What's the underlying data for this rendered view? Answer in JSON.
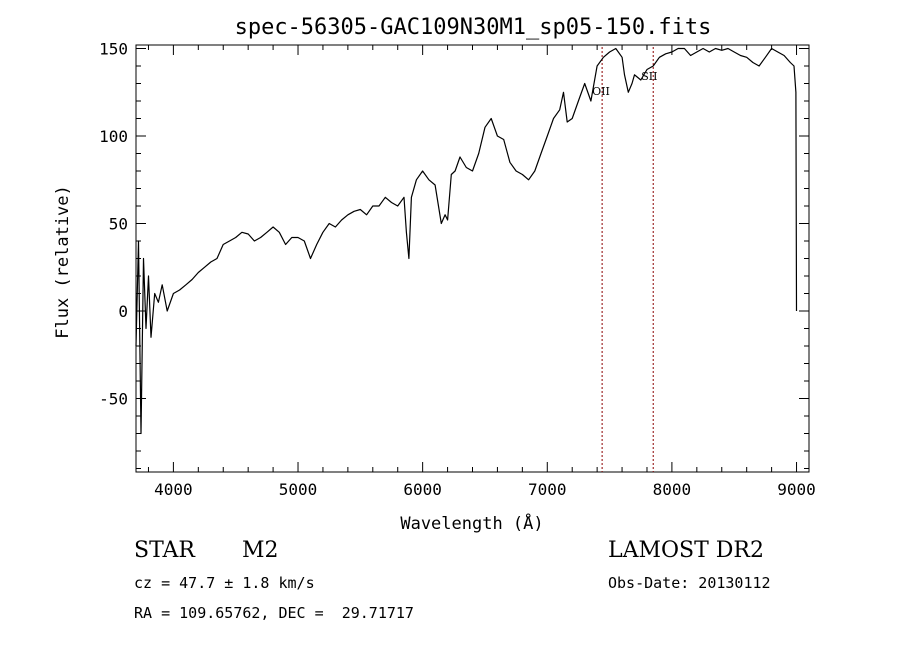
{
  "chart_data": {
    "type": "line",
    "title": "spec-56305-GAC109N30M1_sp05-150.fits",
    "xlabel": "Wavelength (Å)",
    "ylabel": "Flux (relative)",
    "xlim": [
      3700,
      9100
    ],
    "ylim": [
      -92,
      152
    ],
    "xticks": [
      4000,
      5000,
      6000,
      7000,
      8000,
      9000
    ],
    "yticks": [
      -50,
      0,
      50,
      100,
      150
    ],
    "grid": false,
    "line_color": "#000000",
    "marker_color": "#8b0000",
    "lines": [
      {
        "label": "OII",
        "wavelength": 7440
      },
      {
        "label": "SII",
        "wavelength": 7850
      }
    ],
    "series": [
      {
        "x": [
          3700,
          3720,
          3740,
          3760,
          3780,
          3800,
          3820,
          3850,
          3880,
          3910,
          3950,
          4000,
          4050,
          4100,
          4150,
          4200,
          4250,
          4300,
          4350,
          4400,
          4450,
          4500,
          4550,
          4600,
          4650,
          4700,
          4750,
          4800,
          4850,
          4900,
          4950,
          5000,
          5050,
          5100,
          5150,
          5200,
          5250,
          5300,
          5350,
          5400,
          5450,
          5500,
          5550,
          5600,
          5650,
          5700,
          5750,
          5800,
          5850,
          5870,
          5890,
          5910,
          5950,
          6000,
          6050,
          6100,
          6150,
          6180,
          6200,
          6230,
          6260,
          6300,
          6350,
          6400,
          6450,
          6500,
          6550,
          6600,
          6650,
          6700,
          6750,
          6800,
          6850,
          6900,
          6950,
          7000,
          7050,
          7100,
          7130,
          7160,
          7200,
          7250,
          7300,
          7350,
          7400,
          7450,
          7500,
          7550,
          7600,
          7620,
          7650,
          7680,
          7700,
          7750,
          7800,
          7850,
          7900,
          7950,
          8000,
          8050,
          8100,
          8150,
          8200,
          8250,
          8300,
          8350,
          8400,
          8450,
          8500,
          8550,
          8600,
          8650,
          8700,
          8750,
          8800,
          8850,
          8900,
          8950,
          8980,
          8995,
          9000
        ],
        "y": [
          -20,
          40,
          -70,
          30,
          -10,
          20,
          -15,
          10,
          5,
          15,
          0,
          10,
          12,
          15,
          18,
          22,
          25,
          28,
          30,
          38,
          40,
          42,
          45,
          44,
          40,
          42,
          45,
          48,
          45,
          38,
          42,
          42,
          40,
          30,
          38,
          45,
          50,
          48,
          52,
          55,
          57,
          58,
          55,
          60,
          60,
          65,
          62,
          60,
          65,
          45,
          30,
          65,
          75,
          80,
          75,
          72,
          50,
          55,
          52,
          78,
          80,
          88,
          82,
          80,
          90,
          105,
          110,
          100,
          98,
          85,
          80,
          78,
          75,
          80,
          90,
          100,
          110,
          115,
          125,
          108,
          110,
          120,
          130,
          120,
          140,
          145,
          148,
          150,
          145,
          135,
          125,
          130,
          135,
          132,
          138,
          140,
          145,
          147,
          148,
          150,
          150,
          146,
          148,
          150,
          148,
          150,
          149,
          150,
          148,
          146,
          145,
          142,
          140,
          145,
          150,
          148,
          146,
          142,
          140,
          125,
          0
        ]
      }
    ]
  },
  "info": {
    "object_type": "STAR",
    "subclass": "M2",
    "survey": "LAMOST DR2",
    "cz": "cz = 47.7 ± 1.8 km/s",
    "obs_date": "Obs-Date: 20130112",
    "coords": "RA = 109.65762, DEC =  29.71717"
  }
}
